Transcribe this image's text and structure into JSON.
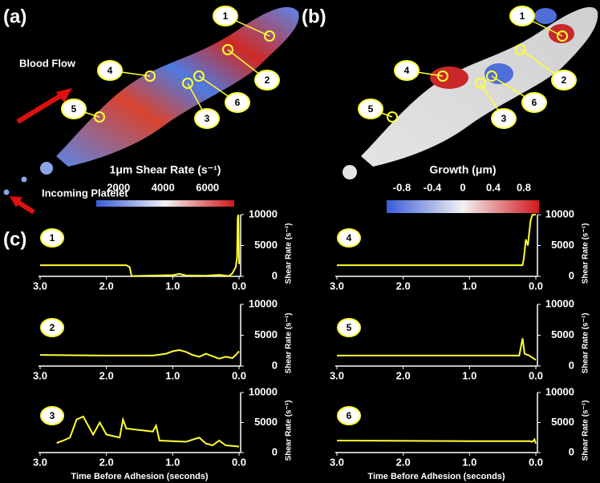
{
  "figure": {
    "panel_labels": [
      "(a)",
      "(b)",
      "(c)"
    ],
    "annotations": [
      "Blood Flow",
      "Incoming Platelet"
    ],
    "markers_a": [
      "1",
      "2",
      "3",
      "4",
      "5",
      "6"
    ],
    "markers_b": [
      "1",
      "2",
      "3",
      "4",
      "5",
      "6"
    ],
    "colorbar_a": {
      "title": "1μm Shear Rate (s⁻¹)",
      "lim": [
        1000,
        7200
      ],
      "ticks": [
        2000,
        4000,
        6000
      ]
    },
    "colorbar_b": {
      "title": "Growth (μm)",
      "lim": [
        -1,
        1
      ],
      "ticks": [
        -0.8,
        -0.4,
        0,
        0.4,
        0.8
      ]
    }
  },
  "chart_data": [
    {
      "type": "line",
      "title": "1",
      "ylabel": "Shear Rate (s⁻¹)",
      "color": "#ffff33",
      "x": [
        3.0,
        1.7,
        1.65,
        1.62,
        1.0,
        0.9,
        0.8,
        0.5,
        0.3,
        0.15,
        0.1,
        0.05,
        0.03,
        0.02,
        0.01,
        0.0
      ],
      "values": [
        1800,
        1800,
        1500,
        50,
        200,
        400,
        150,
        100,
        250,
        50,
        500,
        1500,
        3000,
        9500,
        10000,
        2000
      ],
      "xlim": [
        3,
        0
      ],
      "ylim": [
        0,
        10000
      ],
      "xticks": [
        {
          "value": 3,
          "label": "3.0"
        },
        {
          "value": 2,
          "label": "2.0"
        },
        {
          "value": 1,
          "label": "1.0"
        },
        {
          "value": 0,
          "label": "0.0"
        }
      ],
      "yticks": [
        0,
        5000,
        10000
      ]
    },
    {
      "type": "line",
      "title": "2",
      "ylabel": "Shear Rate (s⁻¹)",
      "color": "#ffff33",
      "x": [
        3.0,
        2.0,
        1.3,
        1.1,
        1.0,
        0.9,
        0.8,
        0.7,
        0.6,
        0.5,
        0.4,
        0.3,
        0.2,
        0.1,
        0.05,
        0.0
      ],
      "values": [
        1800,
        1700,
        1700,
        2000,
        2400,
        2600,
        2300,
        1800,
        1500,
        2000,
        1600,
        1200,
        1500,
        1300,
        1800,
        2400
      ],
      "xlim": [
        3,
        0
      ],
      "ylim": [
        0,
        10000
      ],
      "xticks": [
        {
          "value": 3,
          "label": "3.0"
        },
        {
          "value": 2,
          "label": "2.0"
        },
        {
          "value": 1,
          "label": "1.0"
        },
        {
          "value": 0,
          "label": "0.0"
        }
      ],
      "yticks": [
        0,
        5000,
        10000
      ]
    },
    {
      "type": "line",
      "title": "3",
      "ylabel": "Shear Rate (s⁻¹)",
      "xlabel": "Time Before Adhesion (seconds)",
      "color": "#ffff33",
      "x": [
        2.75,
        2.65,
        2.55,
        2.45,
        2.35,
        2.2,
        2.1,
        2.0,
        1.8,
        1.75,
        1.7,
        1.3,
        1.25,
        1.2,
        0.8,
        0.6,
        0.5,
        0.4,
        0.3,
        0.2,
        0.0
      ],
      "values": [
        1600,
        2000,
        2500,
        5500,
        6000,
        3000,
        5000,
        3000,
        2500,
        5500,
        4000,
        3500,
        4500,
        2000,
        1800,
        2500,
        1500,
        1200,
        2000,
        1200,
        1000
      ],
      "xlim": [
        3,
        0
      ],
      "ylim": [
        0,
        10000
      ],
      "xticks": [
        {
          "value": 3,
          "label": "3.0"
        },
        {
          "value": 2,
          "label": "2.0"
        },
        {
          "value": 1,
          "label": "1.0"
        },
        {
          "value": 0,
          "label": "0.0"
        }
      ],
      "yticks": [
        0,
        5000,
        10000
      ]
    },
    {
      "type": "line",
      "title": "4",
      "ylabel": "Shear Rate (s⁻¹)",
      "color": "#ffff33",
      "x": [
        3.0,
        1.0,
        0.2,
        0.18,
        0.15,
        0.12,
        0.08,
        0.05,
        0.0
      ],
      "values": [
        1800,
        1800,
        1800,
        3000,
        6000,
        5000,
        9000,
        10000,
        10000
      ],
      "xlim": [
        3,
        0
      ],
      "ylim": [
        0,
        10000
      ],
      "xticks": [
        {
          "value": 3,
          "label": "3.0"
        },
        {
          "value": 2,
          "label": "2.0"
        },
        {
          "value": 1,
          "label": "1.0"
        },
        {
          "value": 0,
          "label": "0.0"
        }
      ],
      "yticks": [
        0,
        5000,
        10000
      ]
    },
    {
      "type": "line",
      "title": "5",
      "ylabel": "Shear Rate (s⁻¹)",
      "color": "#ffff33",
      "x": [
        3.0,
        1.0,
        0.25,
        0.2,
        0.17,
        0.1,
        0.0
      ],
      "values": [
        1700,
        1700,
        1700,
        4500,
        2000,
        1700,
        1000
      ],
      "xlim": [
        3,
        0
      ],
      "ylim": [
        0,
        10000
      ],
      "xticks": [
        {
          "value": 3,
          "label": "3.0"
        },
        {
          "value": 2,
          "label": "2.0"
        },
        {
          "value": 1,
          "label": "1.0"
        },
        {
          "value": 0,
          "label": "0.0"
        }
      ],
      "yticks": [
        0,
        5000,
        10000
      ]
    },
    {
      "type": "line",
      "title": "6",
      "ylabel": "Shear Rate (s⁻¹)",
      "xlabel": "Time Before Adhesion (seconds)",
      "color": "#ffff33",
      "x": [
        3.0,
        1.0,
        0.1,
        0.05,
        0.02,
        0.0
      ],
      "values": [
        2000,
        1900,
        1900,
        1800,
        2200,
        1500
      ],
      "xlim": [
        3,
        0
      ],
      "ylim": [
        0,
        10000
      ],
      "xticks": [
        {
          "value": 3,
          "label": "3.0"
        },
        {
          "value": 2,
          "label": "2.0"
        },
        {
          "value": 1,
          "label": "1.0"
        },
        {
          "value": 0,
          "label": "0.0"
        }
      ],
      "yticks": [
        0,
        5000,
        10000
      ]
    }
  ]
}
